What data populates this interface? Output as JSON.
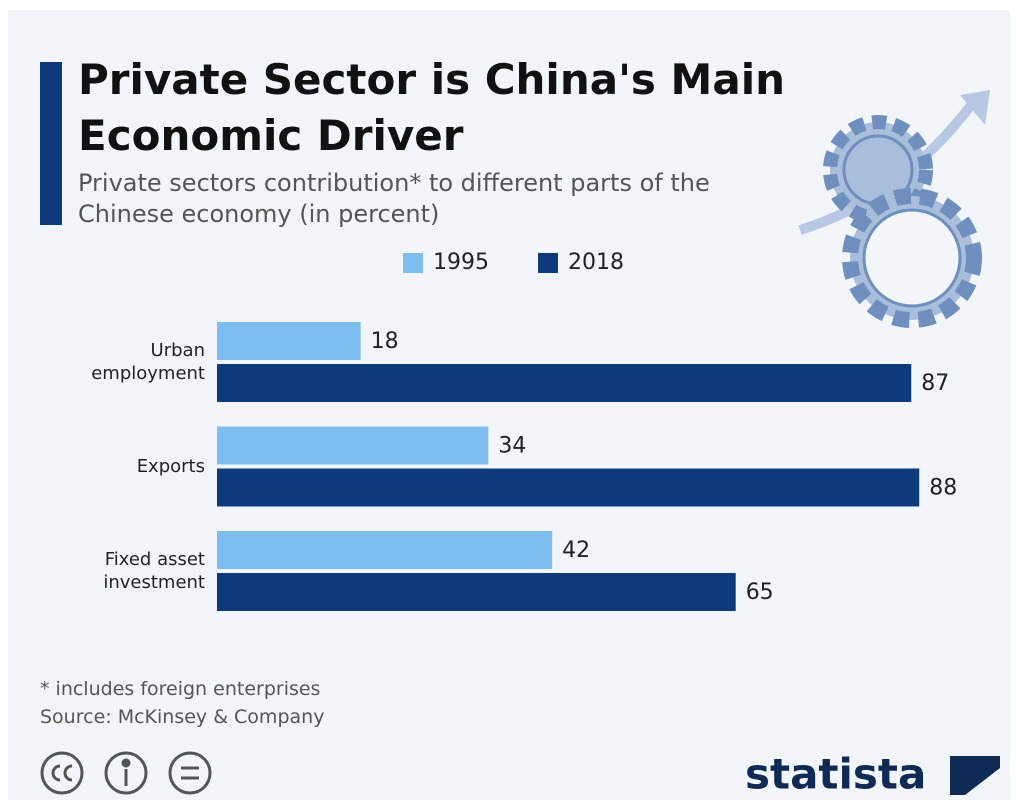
{
  "chart_data": {
    "type": "bar",
    "orientation": "horizontal",
    "title": "Private Sector is China's Main Economic Driver",
    "subtitle": "Private sectors contribution* to different parts of the Chinese economy (in percent)",
    "categories": [
      "Urban employment",
      "Exports",
      "Fixed asset investment"
    ],
    "series": [
      {
        "name": "1995",
        "color": "#7dbdf0",
        "values": [
          18,
          34,
          42
        ]
      },
      {
        "name": "2018",
        "color": "#0e3a7c",
        "values": [
          87,
          88,
          65
        ]
      }
    ],
    "legend": "top",
    "note": "* includes foreign enterprises",
    "source": "Source: McKinsey & Company",
    "brand": "statista"
  }
}
